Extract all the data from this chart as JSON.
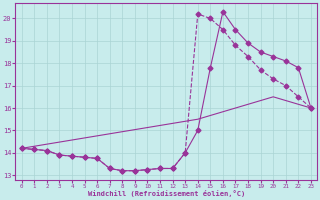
{
  "xlabel": "Windchill (Refroidissement éolien,°C)",
  "xlim": [
    -0.5,
    23.5
  ],
  "ylim": [
    12.8,
    20.7
  ],
  "xticks": [
    0,
    1,
    2,
    3,
    4,
    5,
    6,
    7,
    8,
    9,
    10,
    11,
    12,
    13,
    14,
    15,
    16,
    17,
    18,
    19,
    20,
    21,
    22,
    23
  ],
  "yticks": [
    13,
    14,
    15,
    16,
    17,
    18,
    19,
    20
  ],
  "bg_color": "#c8ecec",
  "grid_color": "#aad4d4",
  "line_color": "#993399",
  "line1_x": [
    0,
    1,
    2,
    3,
    4,
    5,
    6,
    7,
    8,
    9,
    10,
    11,
    12,
    13,
    14,
    15,
    16,
    17,
    18,
    19,
    20,
    21,
    22,
    23
  ],
  "line1_y": [
    14.2,
    14.15,
    14.1,
    13.9,
    13.85,
    13.8,
    13.75,
    13.3,
    13.2,
    13.2,
    13.25,
    13.3,
    13.3,
    14.0,
    20.2,
    20.0,
    19.5,
    18.8,
    18.3,
    17.7,
    17.3,
    17.0,
    16.5,
    16.0
  ],
  "line2_x": [
    0,
    1,
    2,
    3,
    4,
    5,
    6,
    7,
    8,
    9,
    10,
    11,
    12,
    13,
    14,
    15,
    16,
    17,
    18,
    19,
    20,
    21,
    22,
    23
  ],
  "line2_y": [
    14.2,
    14.15,
    14.1,
    13.9,
    13.85,
    13.8,
    13.75,
    13.3,
    13.2,
    13.2,
    13.25,
    13.3,
    13.3,
    14.0,
    15.0,
    17.8,
    20.3,
    19.5,
    18.9,
    18.5,
    18.3,
    18.1,
    17.8,
    16.0
  ],
  "line3_x": [
    0,
    14,
    17,
    20,
    23
  ],
  "line3_y": [
    14.2,
    15.5,
    16.0,
    16.5,
    16.0
  ]
}
